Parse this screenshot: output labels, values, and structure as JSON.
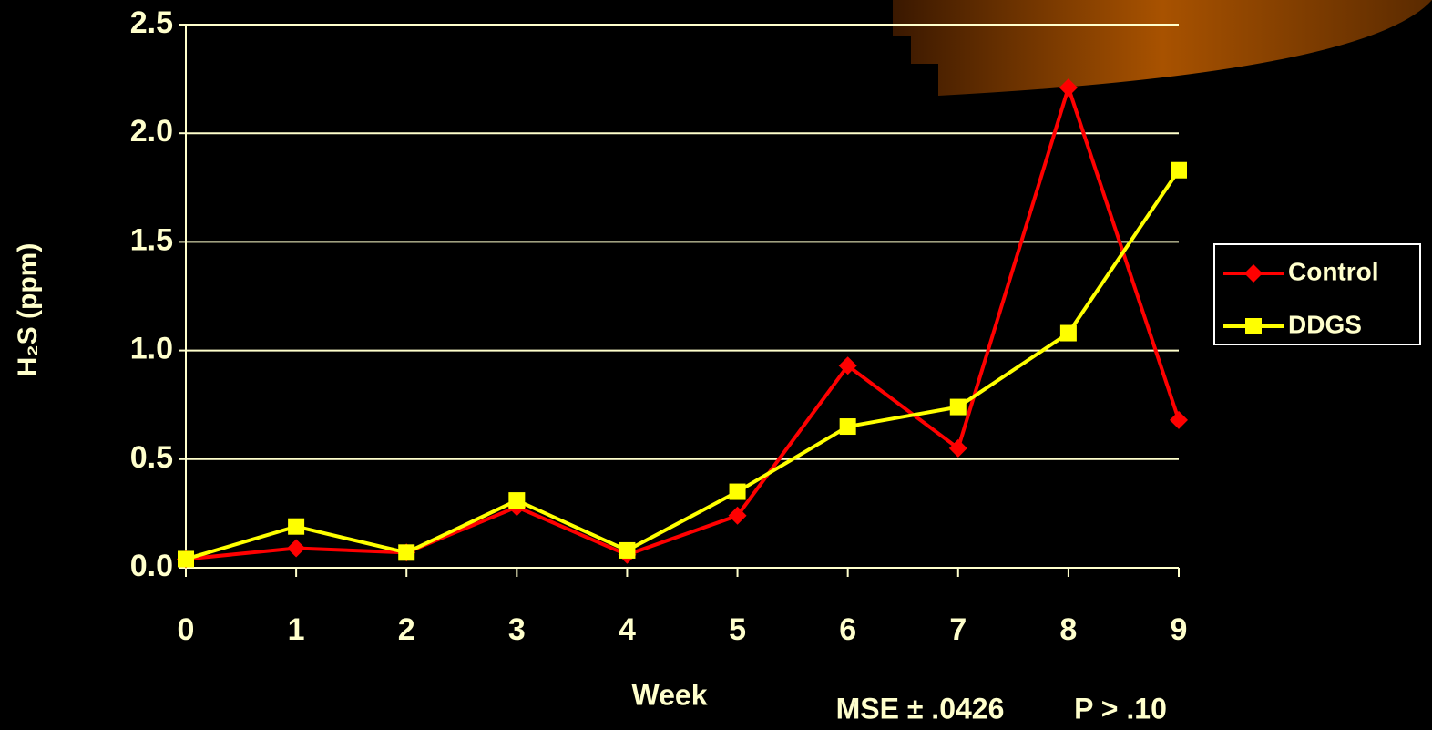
{
  "chart_data": {
    "type": "line",
    "y_label": "H₂S (ppm)",
    "x_label": "Week",
    "annotations": [
      "MSE ± .0426",
      "P > .10"
    ],
    "x": [
      0,
      1,
      2,
      3,
      4,
      5,
      6,
      7,
      8,
      9
    ],
    "xlim": [
      0,
      9
    ],
    "xticks": [
      0,
      1,
      2,
      3,
      4,
      5,
      6,
      7,
      8,
      9
    ],
    "ylim": [
      0,
      2.5
    ],
    "yticks": [
      {
        "value": 0,
        "label": "0.0"
      },
      0.5,
      {
        "value": 1,
        "label": "1.0"
      },
      1.5,
      {
        "value": 2,
        "label": "2.0"
      },
      2.5
    ],
    "grid": true,
    "legend": "right",
    "series": [
      {
        "name": "Control",
        "color": "#ff0000",
        "marker": "diamond",
        "values": [
          0.04,
          0.09,
          0.07,
          0.28,
          0.06,
          0.24,
          0.93,
          0.55,
          2.21,
          0.68
        ]
      },
      {
        "name": "DDGS",
        "color": "#ffff00",
        "marker": "square",
        "values": [
          0.04,
          0.19,
          0.07,
          0.31,
          0.08,
          0.35,
          0.65,
          0.74,
          1.08,
          1.83
        ]
      }
    ]
  }
}
